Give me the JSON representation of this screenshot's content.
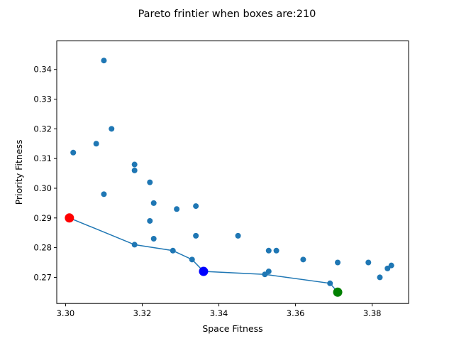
{
  "chart_data": {
    "type": "scatter",
    "title": "Pareto frintier when boxes are:210",
    "xlabel": "Space Fitness",
    "ylabel": "Priority Fitness",
    "xlim": [
      3.2977,
      3.3895
    ],
    "ylim": [
      0.2612,
      0.3496
    ],
    "x_ticks": [
      3.3,
      3.32,
      3.34,
      3.36,
      3.38
    ],
    "x_tick_labels": [
      "3.30",
      "3.32",
      "3.34",
      "3.36",
      "3.38"
    ],
    "y_ticks": [
      0.27,
      0.28,
      0.29,
      0.3,
      0.31,
      0.32,
      0.33,
      0.34
    ],
    "y_tick_labels": [
      "0.27",
      "0.28",
      "0.29",
      "0.30",
      "0.31",
      "0.32",
      "0.33",
      "0.34"
    ],
    "grid": false,
    "scatter_color": "#1f77b4",
    "points": [
      {
        "x": 3.31,
        "y": 0.343
      },
      {
        "x": 3.312,
        "y": 0.32
      },
      {
        "x": 3.308,
        "y": 0.315
      },
      {
        "x": 3.302,
        "y": 0.312
      },
      {
        "x": 3.318,
        "y": 0.308
      },
      {
        "x": 3.318,
        "y": 0.306
      },
      {
        "x": 3.322,
        "y": 0.302
      },
      {
        "x": 3.31,
        "y": 0.298
      },
      {
        "x": 3.323,
        "y": 0.295
      },
      {
        "x": 3.329,
        "y": 0.293
      },
      {
        "x": 3.334,
        "y": 0.294
      },
      {
        "x": 3.322,
        "y": 0.289
      },
      {
        "x": 3.323,
        "y": 0.283
      },
      {
        "x": 3.334,
        "y": 0.284
      },
      {
        "x": 3.345,
        "y": 0.284
      },
      {
        "x": 3.318,
        "y": 0.281
      },
      {
        "x": 3.328,
        "y": 0.279
      },
      {
        "x": 3.353,
        "y": 0.279
      },
      {
        "x": 3.355,
        "y": 0.279
      },
      {
        "x": 3.333,
        "y": 0.276
      },
      {
        "x": 3.362,
        "y": 0.276
      },
      {
        "x": 3.371,
        "y": 0.275
      },
      {
        "x": 3.379,
        "y": 0.275
      },
      {
        "x": 3.353,
        "y": 0.272
      },
      {
        "x": 3.352,
        "y": 0.271
      },
      {
        "x": 3.369,
        "y": 0.268
      },
      {
        "x": 3.382,
        "y": 0.27
      },
      {
        "x": 3.384,
        "y": 0.273
      },
      {
        "x": 3.385,
        "y": 0.274
      }
    ],
    "frontier": {
      "color": "#1f77b4",
      "x": [
        3.301,
        3.318,
        3.328,
        3.333,
        3.336,
        3.352,
        3.369,
        3.371
      ],
      "y": [
        0.29,
        0.281,
        0.279,
        0.276,
        0.272,
        0.271,
        0.268,
        0.265
      ]
    },
    "highlights": [
      {
        "x": 3.301,
        "y": 0.29,
        "color": "#ff0000"
      },
      {
        "x": 3.336,
        "y": 0.272,
        "color": "#0000ff"
      },
      {
        "x": 3.371,
        "y": 0.265,
        "color": "#008000"
      }
    ]
  }
}
